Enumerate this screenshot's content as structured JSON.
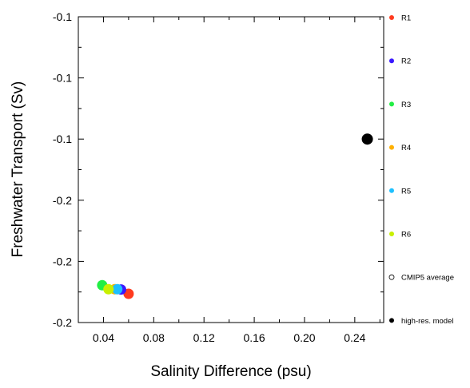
{
  "chart_data": {
    "type": "scatter",
    "title": "",
    "xlabel": "Salinity Difference (psu)",
    "ylabel": "Freshwater Transport (Sv)",
    "xlim": [
      0.02,
      0.263
    ],
    "ylim": [
      -0.2,
      -0.1
    ],
    "x_ticks": [
      0.04,
      0.08,
      0.12,
      0.16,
      0.2,
      0.24
    ],
    "x_tick_labels": [
      "0.04",
      "0.08",
      "0.12",
      "0.16",
      "0.20",
      "0.24"
    ],
    "y_ticks": [
      -0.1,
      -0.12,
      -0.14,
      -0.16,
      -0.18,
      -0.2
    ],
    "y_tick_labels": [
      "-0.1",
      "-0.1",
      "-0.1",
      "-0.2",
      "-0.2",
      "-0.2"
    ],
    "grid": false,
    "legend_placement": "right",
    "series": [
      {
        "name": "R1",
        "color": "#ff3b1f",
        "points": [
          [
            0.06,
            -0.1906
          ]
        ]
      },
      {
        "name": "R2",
        "color": "#3a18ff",
        "points": [
          [
            0.054,
            -0.1892
          ]
        ]
      },
      {
        "name": "R3",
        "color": "#22ee44",
        "points": [
          [
            0.039,
            -0.1878
          ]
        ]
      },
      {
        "name": "R4",
        "color": "#ffb000",
        "points": [
          [
            0.049,
            -0.1891
          ]
        ]
      },
      {
        "name": "R5",
        "color": "#1ec0ff",
        "points": [
          [
            0.051,
            -0.1891
          ]
        ]
      },
      {
        "name": "R6",
        "color": "#c8f000",
        "points": [
          [
            0.044,
            -0.1891
          ]
        ]
      },
      {
        "name": "CMIP5 average",
        "color": "#000000",
        "marker": "hollow",
        "points": []
      },
      {
        "name": "high-res. model",
        "color": "#000000",
        "points": [
          [
            0.25,
            -0.14
          ]
        ]
      }
    ]
  }
}
